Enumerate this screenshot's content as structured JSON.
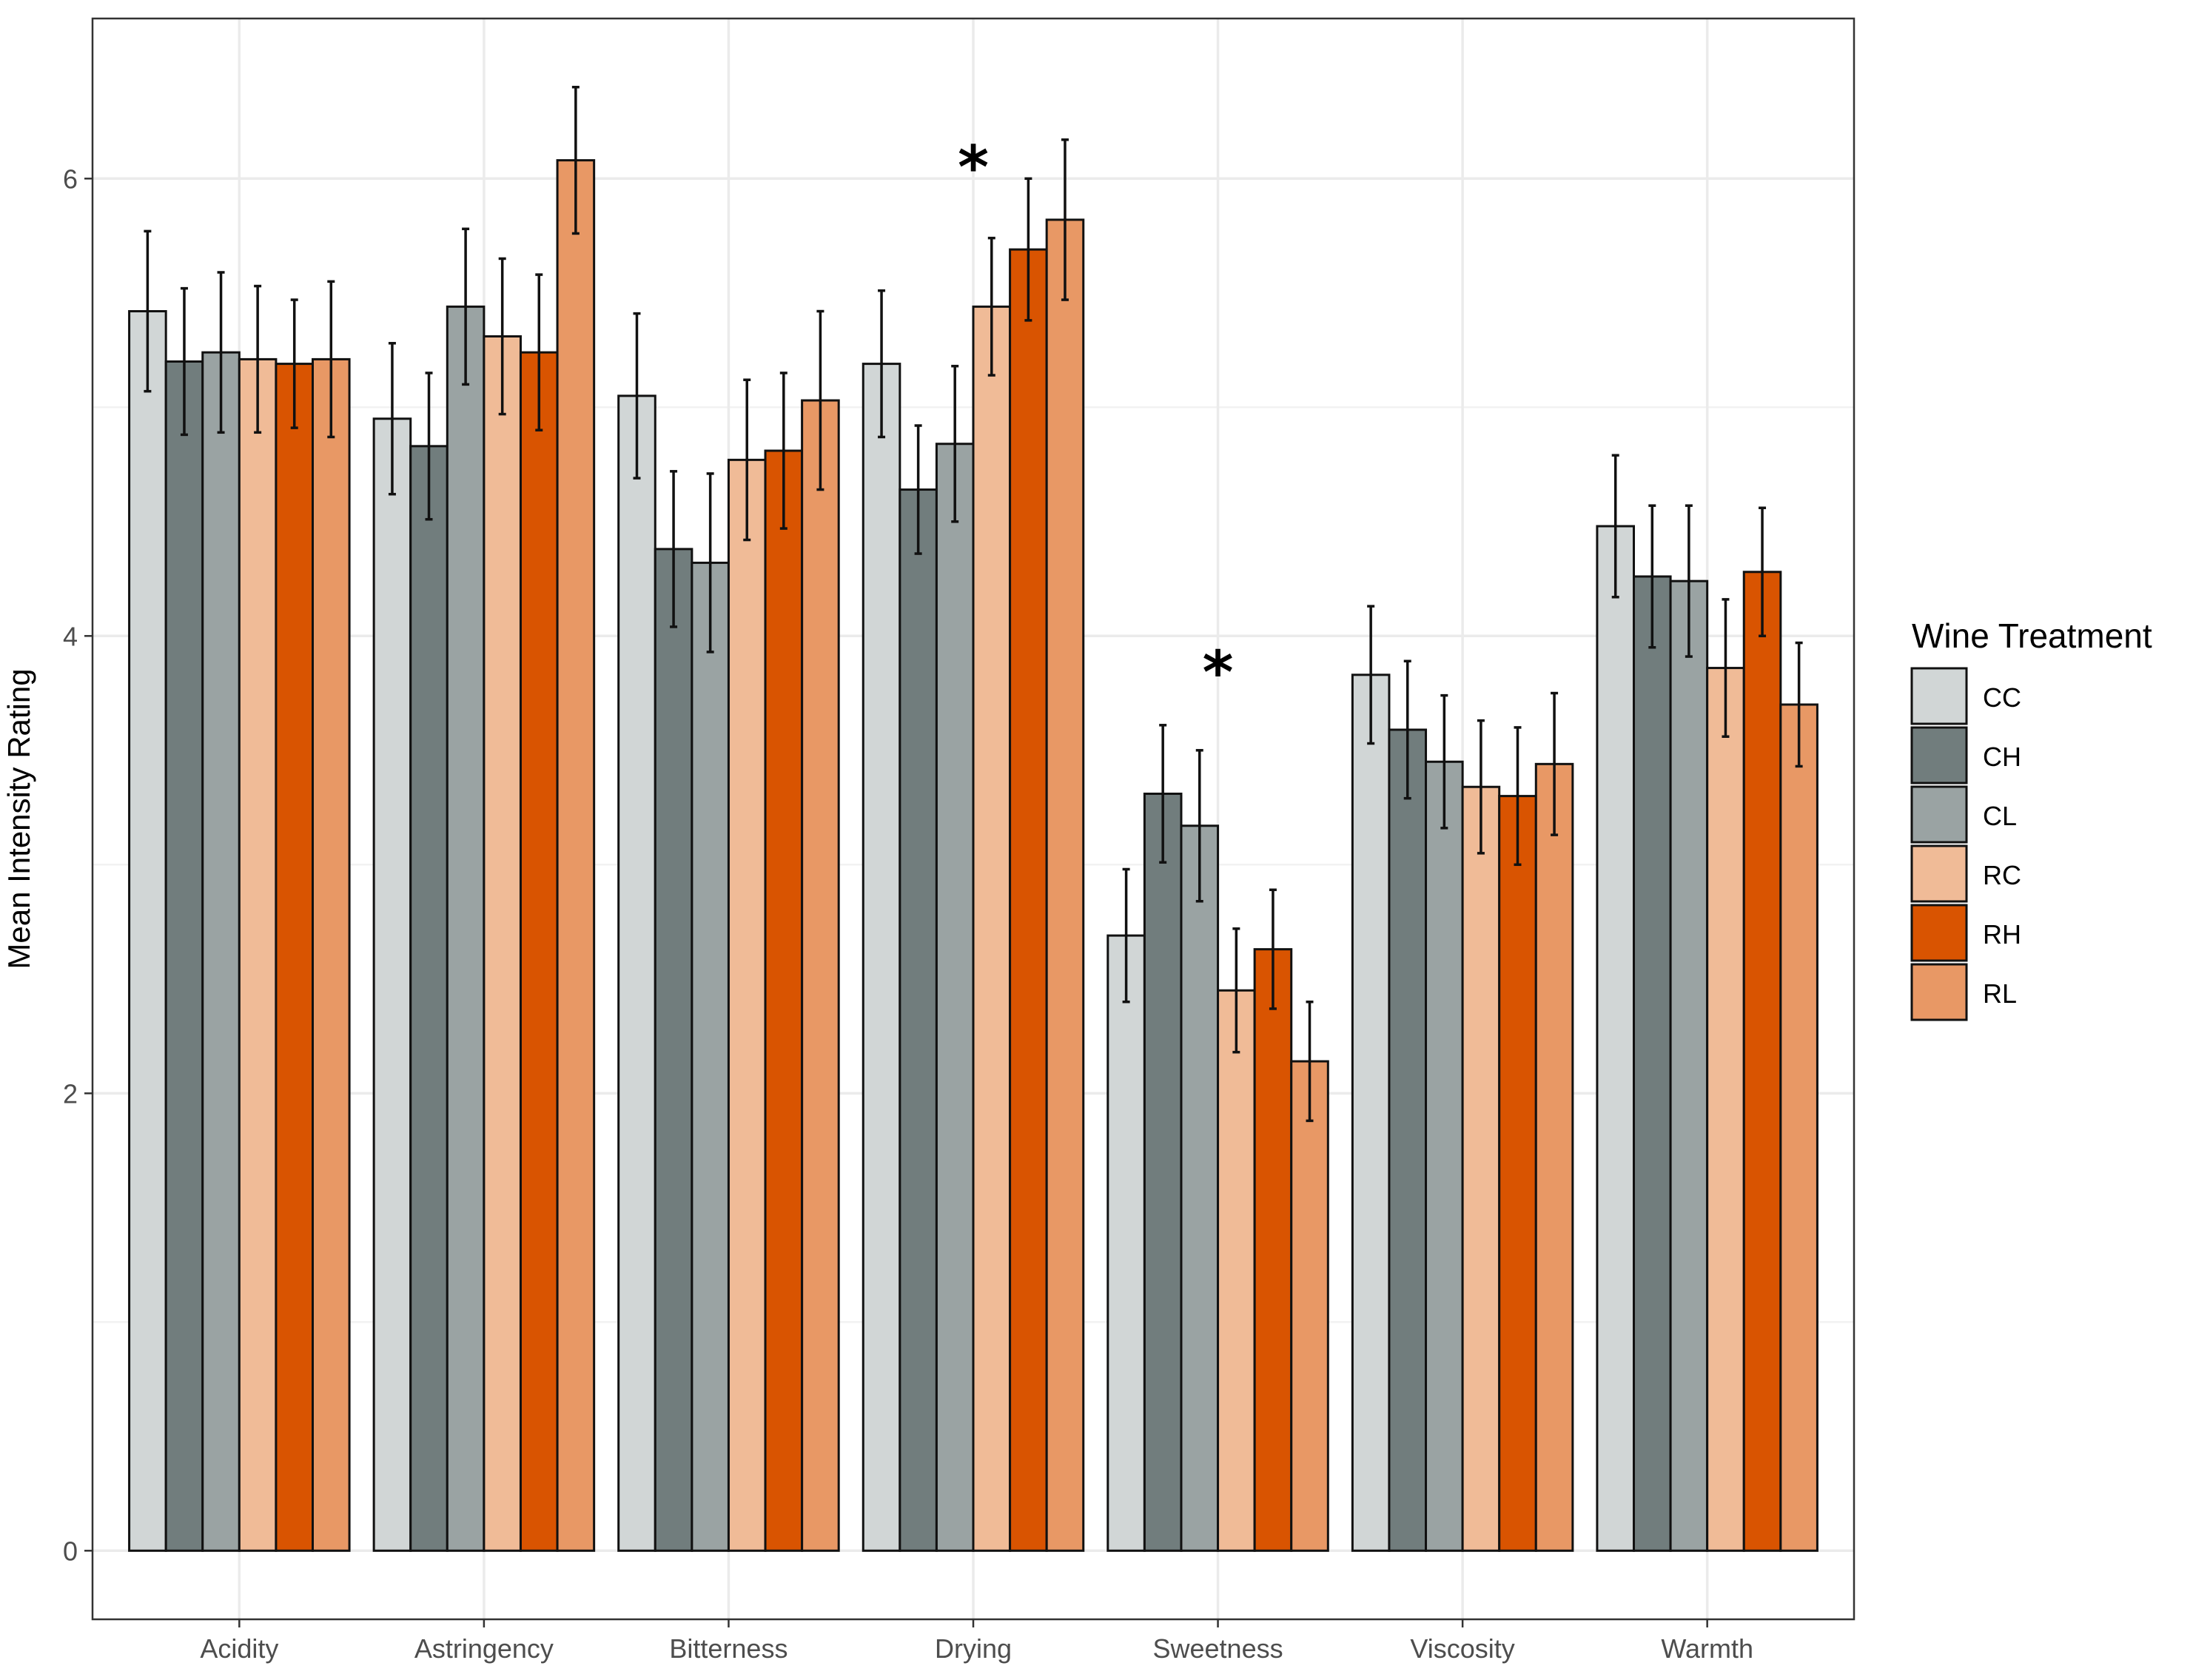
{
  "chart_data": {
    "type": "bar",
    "title": "",
    "xlabel": "",
    "ylabel": "Mean Intensity Rating",
    "ylim": [
      -0.3,
      6.7
    ],
    "y_ticks": [
      0,
      2,
      4,
      6
    ],
    "grid": true,
    "legend_position": "right",
    "legend_title": "Wine Treatment",
    "categories": [
      "Acidity",
      "Astringency",
      "Bitterness",
      "Drying",
      "Sweetness",
      "Viscosity",
      "Warmth"
    ],
    "series": [
      {
        "name": "CC",
        "color": "#d1d6d6",
        "values": [
          5.42,
          4.95,
          5.05,
          5.19,
          2.69,
          3.83,
          4.48
        ],
        "error": [
          0.35,
          0.33,
          0.36,
          0.32,
          0.29,
          0.3,
          0.31
        ]
      },
      {
        "name": "CH",
        "color": "#717d7d",
        "values": [
          5.2,
          4.83,
          4.38,
          4.64,
          3.31,
          3.59,
          4.26
        ],
        "error": [
          0.32,
          0.32,
          0.34,
          0.28,
          0.3,
          0.3,
          0.31
        ]
      },
      {
        "name": "CL",
        "color": "#9aa3a3",
        "values": [
          5.24,
          5.44,
          4.32,
          4.84,
          3.17,
          3.45,
          4.24
        ],
        "error": [
          0.35,
          0.34,
          0.39,
          0.34,
          0.33,
          0.29,
          0.33
        ]
      },
      {
        "name": "RC",
        "color": "#f0bb97",
        "values": [
          5.21,
          5.31,
          4.77,
          5.44,
          2.45,
          3.34,
          3.86
        ],
        "error": [
          0.32,
          0.34,
          0.35,
          0.3,
          0.27,
          0.29,
          0.3
        ]
      },
      {
        "name": "RH",
        "color": "#d95401",
        "values": [
          5.19,
          5.24,
          4.81,
          5.69,
          2.63,
          3.3,
          4.28
        ],
        "error": [
          0.28,
          0.34,
          0.34,
          0.31,
          0.26,
          0.3,
          0.28
        ]
      },
      {
        "name": "RL",
        "color": "#e89865",
        "values": [
          5.21,
          6.08,
          5.03,
          5.82,
          2.14,
          3.44,
          3.7
        ],
        "error": [
          0.34,
          0.32,
          0.39,
          0.35,
          0.26,
          0.31,
          0.27
        ]
      }
    ],
    "annotations": [
      {
        "category": "Drying",
        "text": "*",
        "y": 6.05
      },
      {
        "category": "Sweetness",
        "text": "*",
        "y": 3.84
      }
    ]
  }
}
